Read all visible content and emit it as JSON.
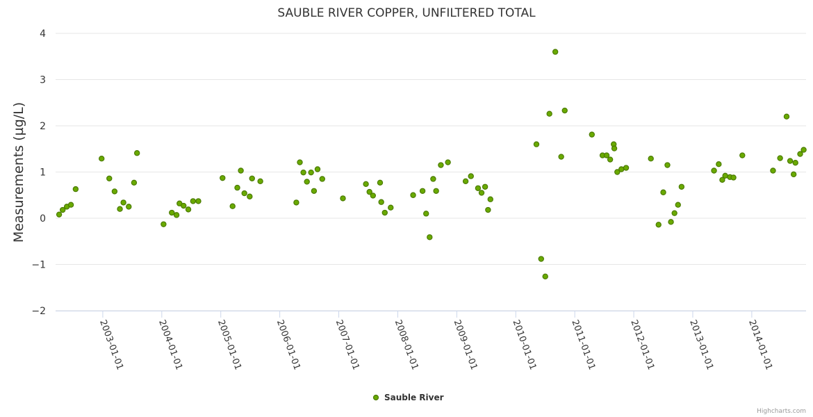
{
  "chart_data": {
    "type": "scatter",
    "title": "SAUBLE RIVER COPPER, UNFILTERED TOTAL",
    "xlabel": "",
    "ylabel": "Measurements (µg/L)",
    "ylim": [
      -2,
      4
    ],
    "yticks": [
      -2,
      -1,
      0,
      1,
      2,
      3,
      4
    ],
    "ytick_labels": [
      "−2",
      "−1",
      "0",
      "1",
      "2",
      "3",
      "4"
    ],
    "xlim": [
      2002.2,
      2014.78
    ],
    "xticks": [
      {
        "value": 2003.0,
        "label": "2003-01-01"
      },
      {
        "value": 2004.0,
        "label": "2004-01-01"
      },
      {
        "value": 2005.0,
        "label": "2005-01-01"
      },
      {
        "value": 2006.0,
        "label": "2006-01-01"
      },
      {
        "value": 2007.0,
        "label": "2007-01-01"
      },
      {
        "value": 2008.0,
        "label": "2008-01-01"
      },
      {
        "value": 2009.0,
        "label": "2009-01-01"
      },
      {
        "value": 2010.0,
        "label": "2010-01-01"
      },
      {
        "value": 2011.0,
        "label": "2011-01-01"
      },
      {
        "value": 2012.0,
        "label": "2012-01-01"
      },
      {
        "value": 2013.0,
        "label": "2013-01-01"
      },
      {
        "value": 2014.0,
        "label": "2014-01-01"
      }
    ],
    "grid": true,
    "legend_position": "bottom-center",
    "series": [
      {
        "name": "Sauble River",
        "color": "#6aaa00",
        "edge_color": "#4a7a00",
        "points": [
          {
            "x": 2002.26,
            "y": 0.08
          },
          {
            "x": 2002.32,
            "y": 0.18
          },
          {
            "x": 2002.39,
            "y": 0.25
          },
          {
            "x": 2002.46,
            "y": 0.29
          },
          {
            "x": 2002.54,
            "y": 0.63
          },
          {
            "x": 2002.98,
            "y": 1.29
          },
          {
            "x": 2003.11,
            "y": 0.86
          },
          {
            "x": 2003.2,
            "y": 0.58
          },
          {
            "x": 2003.29,
            "y": 0.2
          },
          {
            "x": 2003.35,
            "y": 0.34
          },
          {
            "x": 2003.44,
            "y": 0.25
          },
          {
            "x": 2003.53,
            "y": 0.77
          },
          {
            "x": 2003.58,
            "y": 1.41
          },
          {
            "x": 2004.03,
            "y": -0.13
          },
          {
            "x": 2004.17,
            "y": 0.12
          },
          {
            "x": 2004.25,
            "y": 0.07
          },
          {
            "x": 2004.3,
            "y": 0.32
          },
          {
            "x": 2004.37,
            "y": 0.27
          },
          {
            "x": 2004.45,
            "y": 0.19
          },
          {
            "x": 2004.53,
            "y": 0.37
          },
          {
            "x": 2004.62,
            "y": 0.37
          },
          {
            "x": 2005.03,
            "y": 0.87
          },
          {
            "x": 2005.2,
            "y": 0.26
          },
          {
            "x": 2005.28,
            "y": 0.66
          },
          {
            "x": 2005.34,
            "y": 1.03
          },
          {
            "x": 2005.4,
            "y": 0.54
          },
          {
            "x": 2005.49,
            "y": 0.47
          },
          {
            "x": 2005.53,
            "y": 0.86
          },
          {
            "x": 2005.67,
            "y": 0.8
          },
          {
            "x": 2006.28,
            "y": 0.34
          },
          {
            "x": 2006.34,
            "y": 1.21
          },
          {
            "x": 2006.4,
            "y": 0.99
          },
          {
            "x": 2006.46,
            "y": 0.79
          },
          {
            "x": 2006.53,
            "y": 0.99
          },
          {
            "x": 2006.58,
            "y": 0.59
          },
          {
            "x": 2006.64,
            "y": 1.06
          },
          {
            "x": 2006.72,
            "y": 0.85
          },
          {
            "x": 2007.07,
            "y": 0.43
          },
          {
            "x": 2007.46,
            "y": 0.74
          },
          {
            "x": 2007.52,
            "y": 0.57
          },
          {
            "x": 2007.58,
            "y": 0.49
          },
          {
            "x": 2007.7,
            "y": 0.77
          },
          {
            "x": 2007.72,
            "y": 0.35
          },
          {
            "x": 2007.78,
            "y": 0.12
          },
          {
            "x": 2007.88,
            "y": 0.23
          },
          {
            "x": 2008.26,
            "y": 0.5
          },
          {
            "x": 2008.42,
            "y": 0.59
          },
          {
            "x": 2008.48,
            "y": 0.1
          },
          {
            "x": 2008.54,
            "y": -0.41
          },
          {
            "x": 2008.6,
            "y": 0.85
          },
          {
            "x": 2008.65,
            "y": 0.59
          },
          {
            "x": 2008.73,
            "y": 1.15
          },
          {
            "x": 2008.85,
            "y": 1.21
          },
          {
            "x": 2009.15,
            "y": 0.8
          },
          {
            "x": 2009.24,
            "y": 0.91
          },
          {
            "x": 2009.36,
            "y": 0.65
          },
          {
            "x": 2009.42,
            "y": 0.55
          },
          {
            "x": 2009.48,
            "y": 0.68
          },
          {
            "x": 2009.53,
            "y": 0.18
          },
          {
            "x": 2009.57,
            "y": 0.41
          },
          {
            "x": 2010.35,
            "y": 1.6
          },
          {
            "x": 2010.43,
            "y": -0.88
          },
          {
            "x": 2010.5,
            "y": -1.26
          },
          {
            "x": 2010.57,
            "y": 2.26
          },
          {
            "x": 2010.67,
            "y": 3.6
          },
          {
            "x": 2010.77,
            "y": 1.33
          },
          {
            "x": 2010.83,
            "y": 2.33
          },
          {
            "x": 2011.29,
            "y": 1.81
          },
          {
            "x": 2011.47,
            "y": 1.36
          },
          {
            "x": 2011.54,
            "y": 1.36
          },
          {
            "x": 2011.6,
            "y": 1.27
          },
          {
            "x": 2011.66,
            "y": 1.6
          },
          {
            "x": 2011.67,
            "y": 1.51
          },
          {
            "x": 2011.72,
            "y": 1.0
          },
          {
            "x": 2011.79,
            "y": 1.06
          },
          {
            "x": 2011.87,
            "y": 1.09
          },
          {
            "x": 2012.29,
            "y": 1.29
          },
          {
            "x": 2012.42,
            "y": -0.14
          },
          {
            "x": 2012.5,
            "y": 0.56
          },
          {
            "x": 2012.57,
            "y": 1.15
          },
          {
            "x": 2012.63,
            "y": -0.08
          },
          {
            "x": 2012.69,
            "y": 0.11
          },
          {
            "x": 2012.75,
            "y": 0.29
          },
          {
            "x": 2012.81,
            "y": 0.68
          },
          {
            "x": 2013.36,
            "y": 1.03
          },
          {
            "x": 2013.44,
            "y": 1.17
          },
          {
            "x": 2013.5,
            "y": 0.83
          },
          {
            "x": 2013.55,
            "y": 0.92
          },
          {
            "x": 2013.63,
            "y": 0.89
          },
          {
            "x": 2013.69,
            "y": 0.88
          },
          {
            "x": 2013.84,
            "y": 1.36
          },
          {
            "x": 2014.36,
            "y": 1.03
          },
          {
            "x": 2014.48,
            "y": 1.3
          },
          {
            "x": 2014.59,
            "y": 2.2
          },
          {
            "x": 2014.65,
            "y": 1.24
          },
          {
            "x": 2014.71,
            "y": 0.95
          },
          {
            "x": 2014.74,
            "y": 1.2
          },
          {
            "x": 2014.82,
            "y": 1.39
          },
          {
            "x": 2014.88,
            "y": 1.48
          }
        ]
      }
    ],
    "legend": [
      {
        "label": "Sauble River"
      }
    ]
  },
  "credits": "Highcharts.com",
  "colors": {
    "gridline": "#e6e6e6",
    "axis": "#ccd6eb",
    "text": "#333333",
    "marker_fill": "#6aaa00",
    "marker_stroke": "#4a7a00"
  }
}
